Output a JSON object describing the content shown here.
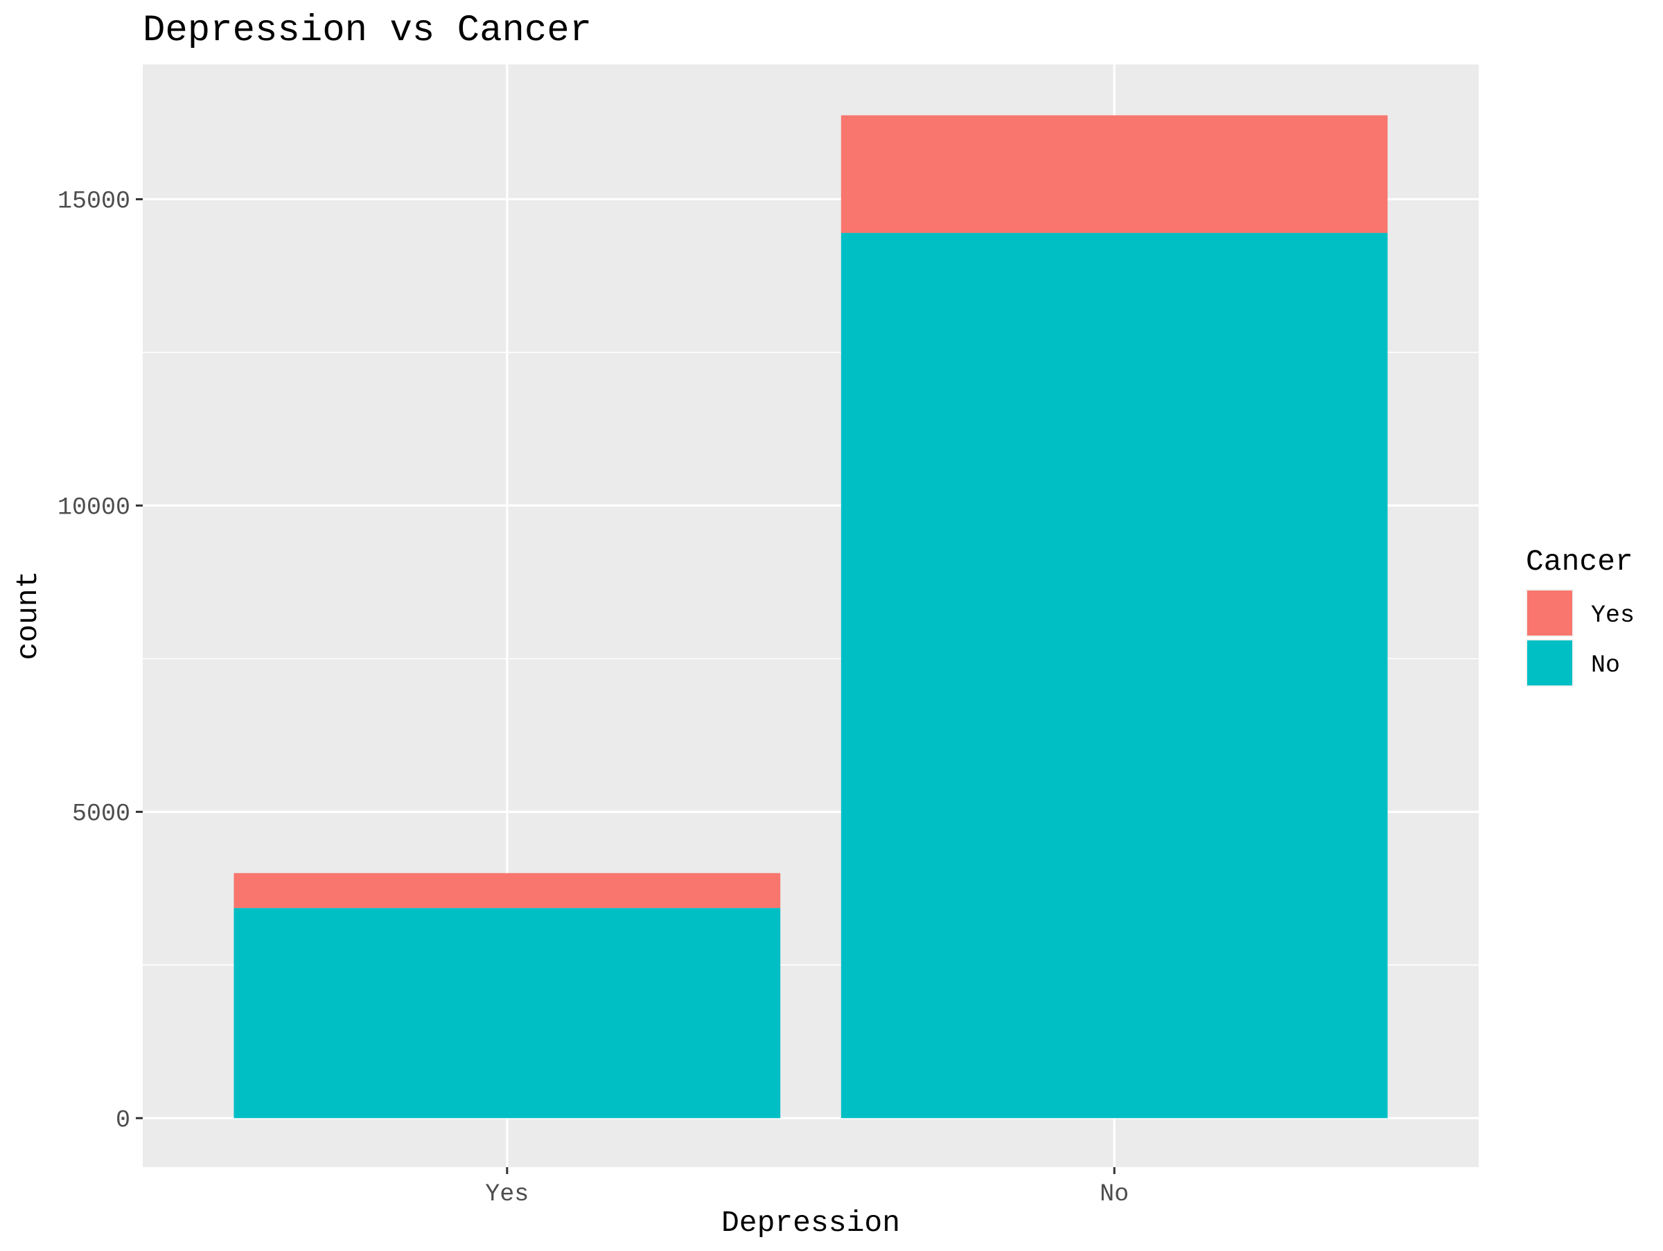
{
  "chart_data": {
    "type": "bar",
    "stacked": true,
    "title": "Depression vs Cancer",
    "xlabel": "Depression",
    "ylabel": "count",
    "categories": [
      "Yes",
      "No"
    ],
    "series": [
      {
        "name": "Yes",
        "color": "#F8766D",
        "values": [
          570,
          1920
        ]
      },
      {
        "name": "No",
        "color": "#00BFC4",
        "values": [
          3430,
          14450
        ]
      }
    ],
    "ylim": [
      -800,
      17200
    ],
    "yticks": [
      0,
      5000,
      10000,
      15000
    ],
    "ytick_labels": [
      "0",
      "5000",
      "10000",
      "15000"
    ],
    "grid": true,
    "legend": {
      "title": "Cancer",
      "position": "right"
    },
    "colors": {
      "panel_bg": "#EBEBEB",
      "grid": "#FFFFFF"
    }
  }
}
